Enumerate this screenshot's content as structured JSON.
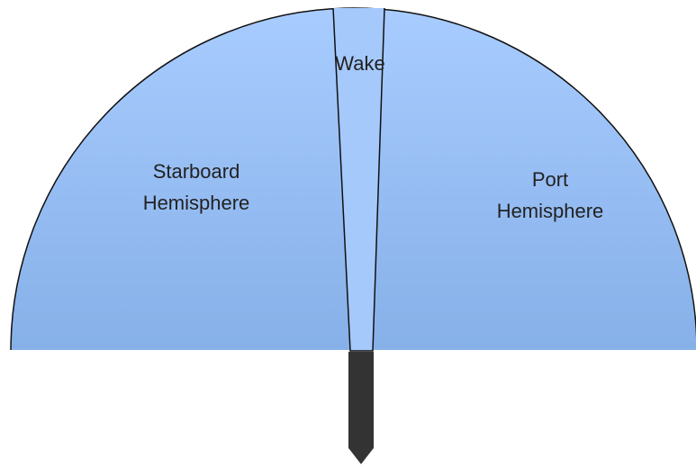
{
  "labels": {
    "wake": "Wake",
    "starboard": [
      "Starboard",
      "Hemisphere"
    ],
    "port": [
      "Port",
      "Hemisphere"
    ]
  }
}
